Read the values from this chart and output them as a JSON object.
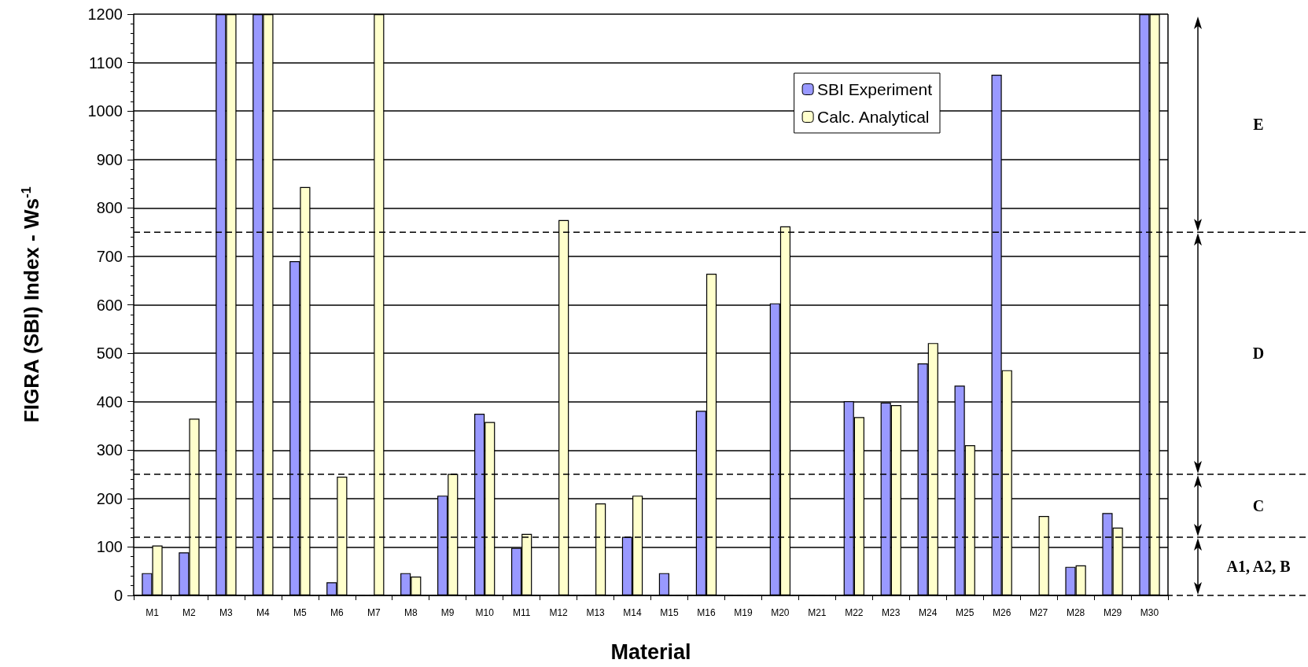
{
  "chart_data": {
    "type": "bar",
    "xlabel": "Material",
    "ylabel": "FIGRA (SBI) Index - Ws$^{-1}$",
    "categories": [
      "M1",
      "M2",
      "M3",
      "M4",
      "M5",
      "M6",
      "M7",
      "M8",
      "M9",
      "M10",
      "M11",
      "M12",
      "M13",
      "M14",
      "M15",
      "M16",
      "M19",
      "M20",
      "M21",
      "M22",
      "M23",
      "M24",
      "M25",
      "M26",
      "M27",
      "M28",
      "M29",
      "M30"
    ],
    "series": [
      {
        "name": "SBI Experiment",
        "color": "#9999ff",
        "values": [
          46,
          89,
          1200,
          1200,
          690,
          27,
          null,
          46,
          206,
          375,
          98,
          null,
          null,
          121,
          46,
          381,
          null,
          603,
          null,
          401,
          398,
          479,
          433,
          1075,
          null,
          59,
          170,
          1200
        ]
      },
      {
        "name": "Calc. Analytical",
        "color": "#ffffcc",
        "values": [
          103,
          365,
          1200,
          1200,
          843,
          245,
          1200,
          39,
          251,
          358,
          127,
          775,
          190,
          206,
          null,
          664,
          null,
          762,
          null,
          368,
          393,
          521,
          310,
          465,
          164,
          62,
          140,
          1200
        ]
      }
    ],
    "ylim": [
      0,
      1200
    ],
    "yticks": [
      0,
      100,
      200,
      300,
      400,
      500,
      600,
      700,
      800,
      900,
      1000,
      1100,
      1200
    ],
    "grid": "y",
    "legend": "top right",
    "ref_lines": [
      {
        "axis": "y",
        "value": 120,
        "line_style": "dashed"
      },
      {
        "axis": "y",
        "value": 250,
        "line_style": "dashed"
      },
      {
        "axis": "y",
        "value": 750,
        "line_style": "dashed"
      },
      {
        "axis": "y",
        "value": 0,
        "line_style": "dashed"
      }
    ],
    "annotations": [
      "E",
      "D",
      "C",
      "A1, A2, B"
    ]
  }
}
